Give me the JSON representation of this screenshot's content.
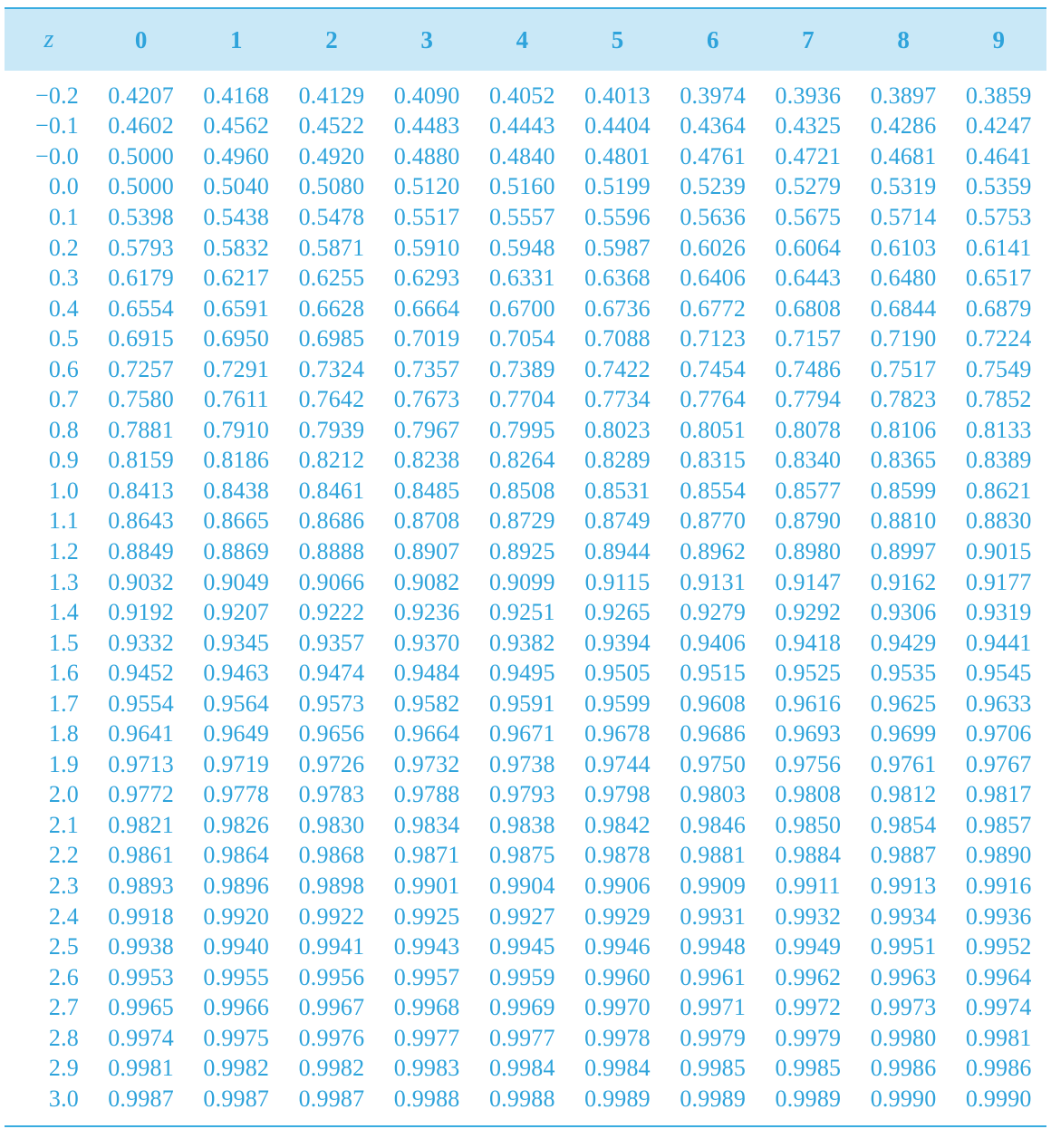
{
  "header": {
    "z_label": "z",
    "columns": [
      "0",
      "1",
      "2",
      "3",
      "4",
      "5",
      "6",
      "7",
      "8",
      "9"
    ]
  },
  "rows": [
    {
      "z": "−0.2",
      "values": [
        "0.4207",
        "0.4168",
        "0.4129",
        "0.4090",
        "0.4052",
        "0.4013",
        "0.3974",
        "0.3936",
        "0.3897",
        "0.3859"
      ]
    },
    {
      "z": "−0.1",
      "values": [
        "0.4602",
        "0.4562",
        "0.4522",
        "0.4483",
        "0.4443",
        "0.4404",
        "0.4364",
        "0.4325",
        "0.4286",
        "0.4247"
      ]
    },
    {
      "z": "−0.0",
      "values": [
        "0.5000",
        "0.4960",
        "0.4920",
        "0.4880",
        "0.4840",
        "0.4801",
        "0.4761",
        "0.4721",
        "0.4681",
        "0.4641"
      ]
    },
    {
      "z": "0.0",
      "values": [
        "0.5000",
        "0.5040",
        "0.5080",
        "0.5120",
        "0.5160",
        "0.5199",
        "0.5239",
        "0.5279",
        "0.5319",
        "0.5359"
      ]
    },
    {
      "z": "0.1",
      "values": [
        "0.5398",
        "0.5438",
        "0.5478",
        "0.5517",
        "0.5557",
        "0.5596",
        "0.5636",
        "0.5675",
        "0.5714",
        "0.5753"
      ]
    },
    {
      "z": "0.2",
      "values": [
        "0.5793",
        "0.5832",
        "0.5871",
        "0.5910",
        "0.5948",
        "0.5987",
        "0.6026",
        "0.6064",
        "0.6103",
        "0.6141"
      ]
    },
    {
      "z": "0.3",
      "values": [
        "0.6179",
        "0.6217",
        "0.6255",
        "0.6293",
        "0.6331",
        "0.6368",
        "0.6406",
        "0.6443",
        "0.6480",
        "0.6517"
      ]
    },
    {
      "z": "0.4",
      "values": [
        "0.6554",
        "0.6591",
        "0.6628",
        "0.6664",
        "0.6700",
        "0.6736",
        "0.6772",
        "0.6808",
        "0.6844",
        "0.6879"
      ]
    },
    {
      "z": "0.5",
      "values": [
        "0.6915",
        "0.6950",
        "0.6985",
        "0.7019",
        "0.7054",
        "0.7088",
        "0.7123",
        "0.7157",
        "0.7190",
        "0.7224"
      ]
    },
    {
      "z": "0.6",
      "values": [
        "0.7257",
        "0.7291",
        "0.7324",
        "0.7357",
        "0.7389",
        "0.7422",
        "0.7454",
        "0.7486",
        "0.7517",
        "0.7549"
      ]
    },
    {
      "z": "0.7",
      "values": [
        "0.7580",
        "0.7611",
        "0.7642",
        "0.7673",
        "0.7704",
        "0.7734",
        "0.7764",
        "0.7794",
        "0.7823",
        "0.7852"
      ]
    },
    {
      "z": "0.8",
      "values": [
        "0.7881",
        "0.7910",
        "0.7939",
        "0.7967",
        "0.7995",
        "0.8023",
        "0.8051",
        "0.8078",
        "0.8106",
        "0.8133"
      ]
    },
    {
      "z": "0.9",
      "values": [
        "0.8159",
        "0.8186",
        "0.8212",
        "0.8238",
        "0.8264",
        "0.8289",
        "0.8315",
        "0.8340",
        "0.8365",
        "0.8389"
      ]
    },
    {
      "z": "1.0",
      "values": [
        "0.8413",
        "0.8438",
        "0.8461",
        "0.8485",
        "0.8508",
        "0.8531",
        "0.8554",
        "0.8577",
        "0.8599",
        "0.8621"
      ]
    },
    {
      "z": "1.1",
      "values": [
        "0.8643",
        "0.8665",
        "0.8686",
        "0.8708",
        "0.8729",
        "0.8749",
        "0.8770",
        "0.8790",
        "0.8810",
        "0.8830"
      ]
    },
    {
      "z": "1.2",
      "values": [
        "0.8849",
        "0.8869",
        "0.8888",
        "0.8907",
        "0.8925",
        "0.8944",
        "0.8962",
        "0.8980",
        "0.8997",
        "0.9015"
      ]
    },
    {
      "z": "1.3",
      "values": [
        "0.9032",
        "0.9049",
        "0.9066",
        "0.9082",
        "0.9099",
        "0.9115",
        "0.9131",
        "0.9147",
        "0.9162",
        "0.9177"
      ]
    },
    {
      "z": "1.4",
      "values": [
        "0.9192",
        "0.9207",
        "0.9222",
        "0.9236",
        "0.9251",
        "0.9265",
        "0.9279",
        "0.9292",
        "0.9306",
        "0.9319"
      ]
    },
    {
      "z": "1.5",
      "values": [
        "0.9332",
        "0.9345",
        "0.9357",
        "0.9370",
        "0.9382",
        "0.9394",
        "0.9406",
        "0.9418",
        "0.9429",
        "0.9441"
      ]
    },
    {
      "z": "1.6",
      "values": [
        "0.9452",
        "0.9463",
        "0.9474",
        "0.9484",
        "0.9495",
        "0.9505",
        "0.9515",
        "0.9525",
        "0.9535",
        "0.9545"
      ]
    },
    {
      "z": "1.7",
      "values": [
        "0.9554",
        "0.9564",
        "0.9573",
        "0.9582",
        "0.9591",
        "0.9599",
        "0.9608",
        "0.9616",
        "0.9625",
        "0.9633"
      ]
    },
    {
      "z": "1.8",
      "values": [
        "0.9641",
        "0.9649",
        "0.9656",
        "0.9664",
        "0.9671",
        "0.9678",
        "0.9686",
        "0.9693",
        "0.9699",
        "0.9706"
      ]
    },
    {
      "z": "1.9",
      "values": [
        "0.9713",
        "0.9719",
        "0.9726",
        "0.9732",
        "0.9738",
        "0.9744",
        "0.9750",
        "0.9756",
        "0.9761",
        "0.9767"
      ]
    },
    {
      "z": "2.0",
      "values": [
        "0.9772",
        "0.9778",
        "0.9783",
        "0.9788",
        "0.9793",
        "0.9798",
        "0.9803",
        "0.9808",
        "0.9812",
        "0.9817"
      ]
    },
    {
      "z": "2.1",
      "values": [
        "0.9821",
        "0.9826",
        "0.9830",
        "0.9834",
        "0.9838",
        "0.9842",
        "0.9846",
        "0.9850",
        "0.9854",
        "0.9857"
      ]
    },
    {
      "z": "2.2",
      "values": [
        "0.9861",
        "0.9864",
        "0.9868",
        "0.9871",
        "0.9875",
        "0.9878",
        "0.9881",
        "0.9884",
        "0.9887",
        "0.9890"
      ]
    },
    {
      "z": "2.3",
      "values": [
        "0.9893",
        "0.9896",
        "0.9898",
        "0.9901",
        "0.9904",
        "0.9906",
        "0.9909",
        "0.9911",
        "0.9913",
        "0.9916"
      ]
    },
    {
      "z": "2.4",
      "values": [
        "0.9918",
        "0.9920",
        "0.9922",
        "0.9925",
        "0.9927",
        "0.9929",
        "0.9931",
        "0.9932",
        "0.9934",
        "0.9936"
      ]
    },
    {
      "z": "2.5",
      "values": [
        "0.9938",
        "0.9940",
        "0.9941",
        "0.9943",
        "0.9945",
        "0.9946",
        "0.9948",
        "0.9949",
        "0.9951",
        "0.9952"
      ]
    },
    {
      "z": "2.6",
      "values": [
        "0.9953",
        "0.9955",
        "0.9956",
        "0.9957",
        "0.9959",
        "0.9960",
        "0.9961",
        "0.9962",
        "0.9963",
        "0.9964"
      ]
    },
    {
      "z": "2.7",
      "values": [
        "0.9965",
        "0.9966",
        "0.9967",
        "0.9968",
        "0.9969",
        "0.9970",
        "0.9971",
        "0.9972",
        "0.9973",
        "0.9974"
      ]
    },
    {
      "z": "2.8",
      "values": [
        "0.9974",
        "0.9975",
        "0.9976",
        "0.9977",
        "0.9977",
        "0.9978",
        "0.9979",
        "0.9979",
        "0.9980",
        "0.9981"
      ]
    },
    {
      "z": "2.9",
      "values": [
        "0.9981",
        "0.9982",
        "0.9982",
        "0.9983",
        "0.9984",
        "0.9984",
        "0.9985",
        "0.9985",
        "0.9986",
        "0.9986"
      ]
    },
    {
      "z": "3.0",
      "values": [
        "0.9987",
        "0.9987",
        "0.9987",
        "0.9988",
        "0.9988",
        "0.9989",
        "0.9989",
        "0.9989",
        "0.9990",
        "0.9990"
      ]
    }
  ],
  "colors": {
    "text": "#2ea3db",
    "header_bg": "#c9e8f7",
    "rule": "#39ace0"
  }
}
